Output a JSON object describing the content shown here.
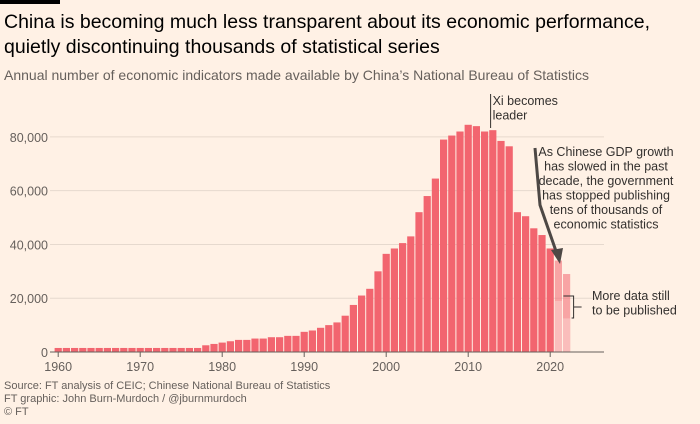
{
  "title": "China is becoming much less transparent about its economic performance, quietly discontinuing thousands of statistical series",
  "subtitle": "Annual number of economic indicators made available by China’s National Bureau of Statistics",
  "footer": {
    "source": "Source: FT analysis of CEIC; Chinese National Bureau of Statistics",
    "graphic": "FT graphic: John Burn-Murdoch / @jburnmurdoch",
    "copyright": "© FT"
  },
  "colors": {
    "bar": "#f2656f",
    "faded_bar": "#fbc7c4",
    "background": "#fff1e5",
    "annotation_arrow": "#4d4845"
  },
  "chart_data": {
    "type": "bar",
    "title": "",
    "xlabel": "",
    "ylabel": "",
    "ylim": [
      0,
      90000
    ],
    "xlim": [
      1959,
      2026
    ],
    "grid": true,
    "x_ticks": [
      "1960",
      "1970",
      "1980",
      "1990",
      "2000",
      "2010",
      "2020"
    ],
    "y_ticks": [
      "0",
      "20,000",
      "40,000",
      "60,000",
      "80,000"
    ],
    "years": [
      1960,
      1961,
      1962,
      1963,
      1964,
      1965,
      1966,
      1967,
      1968,
      1969,
      1970,
      1971,
      1972,
      1973,
      1974,
      1975,
      1976,
      1977,
      1978,
      1979,
      1980,
      1981,
      1982,
      1983,
      1984,
      1985,
      1986,
      1987,
      1988,
      1989,
      1990,
      1991,
      1992,
      1993,
      1994,
      1995,
      1996,
      1997,
      1998,
      1999,
      2000,
      2001,
      2002,
      2003,
      2004,
      2005,
      2006,
      2007,
      2008,
      2009,
      2010,
      2011,
      2012,
      2013,
      2014,
      2015,
      2016,
      2017,
      2018,
      2019,
      2020,
      2021,
      2022
    ],
    "values": [
      1500,
      1500,
      1500,
      1500,
      1500,
      1500,
      1500,
      1500,
      1500,
      1500,
      1500,
      1500,
      1500,
      1500,
      1500,
      1500,
      1500,
      1500,
      2500,
      3000,
      3500,
      4000,
      4500,
      4500,
      5000,
      5000,
      5500,
      5500,
      6000,
      6000,
      7500,
      8000,
      9000,
      10000,
      11000,
      13500,
      17500,
      21000,
      23500,
      30000,
      36500,
      38500,
      40500,
      43000,
      52000,
      58000,
      64500,
      79000,
      80500,
      82000,
      84500,
      84000,
      82000,
      82500,
      78500,
      76500,
      52000,
      50500,
      46000,
      43500,
      38500,
      34000,
      29000
    ],
    "partial_years": [
      2021,
      2022
    ],
    "faded_bars": [
      {
        "year": 2021,
        "value": 19000
      },
      {
        "year": 2022,
        "value": 12500
      }
    ],
    "annotations": [
      {
        "id": "xi",
        "lines": [
          "Xi becomes",
          "leader"
        ],
        "year": 2012
      },
      {
        "id": "slowed",
        "lines": [
          "As Chinese GDP growth",
          "has slowed in the past",
          "decade, the government",
          "has stopped publishing",
          "tens of thousands of",
          "economic statistics"
        ]
      },
      {
        "id": "more",
        "lines": [
          "More data still",
          "to be published"
        ]
      }
    ]
  }
}
